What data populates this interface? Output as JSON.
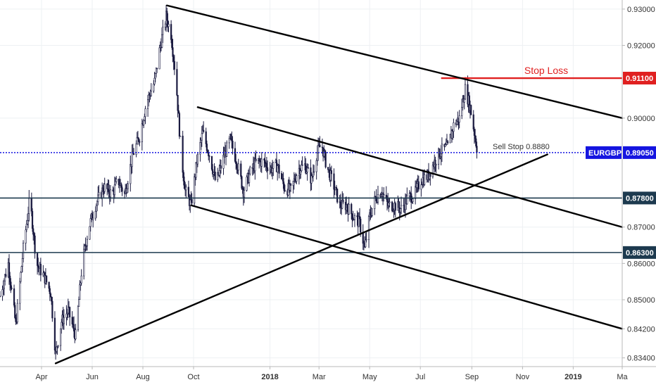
{
  "chart_data": {
    "type": "candlestick",
    "symbol": "EURGBP",
    "x_axis": {
      "ticks": [
        {
          "label": "Apr",
          "date": "2017-04-01",
          "bold": false
        },
        {
          "label": "Jun",
          "date": "2017-06-01",
          "bold": false
        },
        {
          "label": "Aug",
          "date": "2017-08-01",
          "bold": false
        },
        {
          "label": "Oct",
          "date": "2017-10-01",
          "bold": false
        },
        {
          "label": "2018",
          "date": "2018-01-01",
          "bold": true
        },
        {
          "label": "Mar",
          "date": "2018-03-01",
          "bold": false
        },
        {
          "label": "May",
          "date": "2018-05-01",
          "bold": false
        },
        {
          "label": "Jul",
          "date": "2018-07-01",
          "bold": false
        },
        {
          "label": "Sep",
          "date": "2018-09-01",
          "bold": false
        },
        {
          "label": "Nov",
          "date": "2018-11-01",
          "bold": false
        },
        {
          "label": "2019",
          "date": "2019-01-01",
          "bold": true
        },
        {
          "label": "Ma",
          "date": "2019-03-01",
          "bold": false
        }
      ],
      "range": [
        "2017-02-10",
        "2019-03-01"
      ]
    },
    "y_axis": {
      "ticks": [
        "0.93000",
        "0.92000",
        "0.90000",
        "0.87000",
        "0.86000",
        "0.85000",
        "0.84200",
        "0.83400"
      ],
      "range": [
        0.8316,
        0.9325
      ]
    },
    "price_path": [
      [
        "2017-02-10",
        0.851
      ],
      [
        "2017-02-20",
        0.86
      ],
      [
        "2017-03-01",
        0.843
      ],
      [
        "2017-03-10",
        0.864
      ],
      [
        "2017-03-18",
        0.878
      ],
      [
        "2017-03-26",
        0.86
      ],
      [
        "2017-04-05",
        0.856
      ],
      [
        "2017-04-12",
        0.852
      ],
      [
        "2017-04-18",
        0.835
      ],
      [
        "2017-04-25",
        0.844
      ],
      [
        "2017-05-03",
        0.847
      ],
      [
        "2017-05-12",
        0.84
      ],
      [
        "2017-05-20",
        0.86
      ],
      [
        "2017-05-28",
        0.87
      ],
      [
        "2017-06-05",
        0.876
      ],
      [
        "2017-06-15",
        0.881
      ],
      [
        "2017-06-25",
        0.879
      ],
      [
        "2017-07-02",
        0.883
      ],
      [
        "2017-07-10",
        0.879
      ],
      [
        "2017-07-20",
        0.89
      ],
      [
        "2017-07-28",
        0.895
      ],
      [
        "2017-08-05",
        0.904
      ],
      [
        "2017-08-15",
        0.91
      ],
      [
        "2017-08-22",
        0.92
      ],
      [
        "2017-08-29",
        0.928
      ],
      [
        "2017-09-04",
        0.923
      ],
      [
        "2017-09-10",
        0.91
      ],
      [
        "2017-09-16",
        0.89
      ],
      [
        "2017-09-21",
        0.88
      ],
      [
        "2017-09-28",
        0.876
      ],
      [
        "2017-10-05",
        0.888
      ],
      [
        "2017-10-12",
        0.896
      ],
      [
        "2017-10-20",
        0.89
      ],
      [
        "2017-10-28",
        0.882
      ],
      [
        "2017-11-06",
        0.889
      ],
      [
        "2017-11-14",
        0.894
      ],
      [
        "2017-11-22",
        0.888
      ],
      [
        "2017-11-30",
        0.88
      ],
      [
        "2017-12-08",
        0.885
      ],
      [
        "2017-12-16",
        0.888
      ],
      [
        "2017-12-24",
        0.888
      ],
      [
        "2018-01-02",
        0.886
      ],
      [
        "2018-01-10",
        0.887
      ],
      [
        "2018-01-18",
        0.881
      ],
      [
        "2018-01-26",
        0.88
      ],
      [
        "2018-02-04",
        0.886
      ],
      [
        "2018-02-12",
        0.887
      ],
      [
        "2018-02-20",
        0.883
      ],
      [
        "2018-02-26",
        0.89
      ],
      [
        "2018-03-04",
        0.893
      ],
      [
        "2018-03-10",
        0.887
      ],
      [
        "2018-03-18",
        0.882
      ],
      [
        "2018-03-26",
        0.876
      ],
      [
        "2018-04-03",
        0.876
      ],
      [
        "2018-04-11",
        0.873
      ],
      [
        "2018-04-19",
        0.871
      ],
      [
        "2018-04-25",
        0.864
      ],
      [
        "2018-05-01",
        0.873
      ],
      [
        "2018-05-08",
        0.878
      ],
      [
        "2018-05-15",
        0.88
      ],
      [
        "2018-05-23",
        0.876
      ],
      [
        "2018-05-31",
        0.876
      ],
      [
        "2018-06-08",
        0.875
      ],
      [
        "2018-06-16",
        0.878
      ],
      [
        "2018-06-24",
        0.879
      ],
      [
        "2018-07-02",
        0.883
      ],
      [
        "2018-07-10",
        0.884
      ],
      [
        "2018-07-18",
        0.888
      ],
      [
        "2018-07-26",
        0.891
      ],
      [
        "2018-08-03",
        0.892
      ],
      [
        "2018-08-10",
        0.898
      ],
      [
        "2018-08-17",
        0.9
      ],
      [
        "2018-08-24",
        0.908
      ],
      [
        "2018-08-30",
        0.903
      ],
      [
        "2018-09-04",
        0.896
      ],
      [
        "2018-09-08",
        0.8905
      ]
    ],
    "levels": [
      {
        "value": 0.911,
        "label": "0.91100",
        "tag_color": "#e02020"
      },
      {
        "value": 0.8905,
        "label": "0.89050",
        "tag_color": "#1515e0",
        "symbol_label": "EURGBP"
      },
      {
        "value": 0.878,
        "label": "0.87800",
        "tag_color": "#1d3a4f"
      },
      {
        "value": 0.863,
        "label": "0.86300",
        "tag_color": "#1d3a4f"
      }
    ],
    "trendlines": [
      {
        "name": "upper-channel",
        "points": [
          [
            "2017-08-30",
            0.931
          ],
          [
            "2019-03-01",
            0.9
          ]
        ]
      },
      {
        "name": "mid-upper-channel",
        "points": [
          [
            "2017-10-06",
            0.903
          ],
          [
            "2019-03-01",
            0.87
          ]
        ]
      },
      {
        "name": "mid-lower-channel",
        "points": [
          [
            "2017-09-28",
            0.876
          ],
          [
            "2019-03-01",
            0.842
          ]
        ]
      },
      {
        "name": "rising-support",
        "points": [
          [
            "2017-04-18",
            0.8325
          ],
          [
            "2018-12-01",
            0.89
          ]
        ]
      }
    ],
    "annotations": {
      "stop_loss": "Stop Loss",
      "sell_stop": "Sell Stop 0.8880"
    },
    "colors": {
      "candle": "#1a1a40",
      "stop_loss": "#e02020",
      "current_price": "#1515e0",
      "support": "#1d3a4f",
      "trendline": "#000000"
    },
    "grid": true
  }
}
